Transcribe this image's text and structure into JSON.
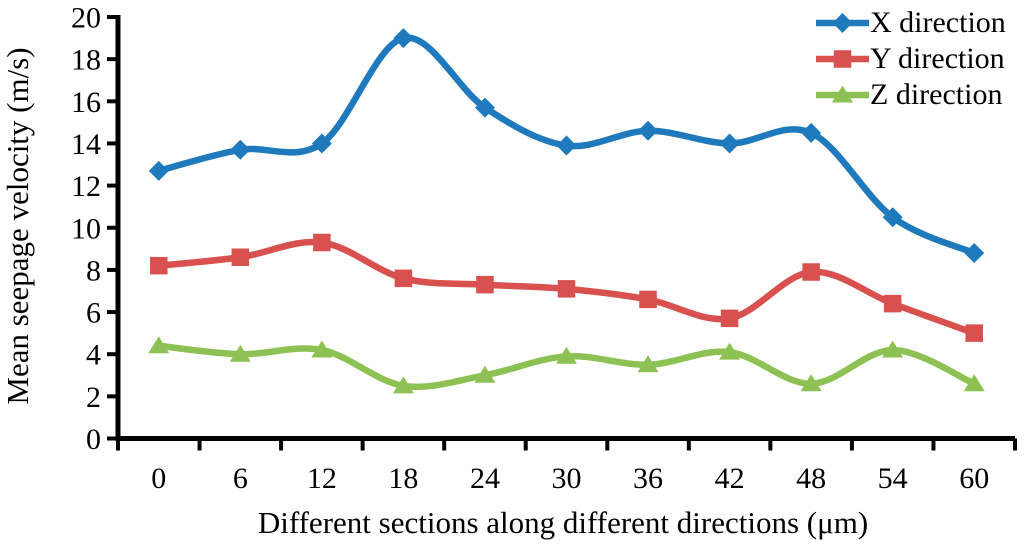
{
  "chart_data": {
    "type": "line",
    "smooth": true,
    "grid": false,
    "legend_position": "top-right",
    "xlabel": "Different sections along different directions (μm)",
    "ylabel": "Mean seepage velocity (m/s)",
    "categories": [
      0,
      6,
      12,
      18,
      24,
      30,
      36,
      42,
      48,
      54,
      60
    ],
    "y_ticks": [
      0,
      2,
      4,
      6,
      8,
      10,
      12,
      14,
      16,
      18,
      20
    ],
    "ylim": [
      0,
      20
    ],
    "axis_color": "#000000",
    "series": [
      {
        "name": "X direction",
        "marker": "diamond",
        "color": "#1F7ABD",
        "values": [
          12.7,
          13.7,
          14.0,
          19.0,
          15.7,
          13.9,
          14.6,
          14.0,
          14.5,
          10.5,
          8.8
        ]
      },
      {
        "name": "Y direction",
        "marker": "square",
        "color": "#D9514E",
        "values": [
          8.2,
          8.6,
          9.3,
          7.6,
          7.3,
          7.1,
          6.6,
          5.7,
          7.9,
          6.4,
          5.0
        ]
      },
      {
        "name": "Z direction",
        "marker": "triangle",
        "color": "#8DC153",
        "values": [
          4.4,
          4.0,
          4.2,
          2.5,
          3.0,
          3.9,
          3.5,
          4.1,
          2.6,
          4.2,
          2.6
        ]
      }
    ]
  }
}
